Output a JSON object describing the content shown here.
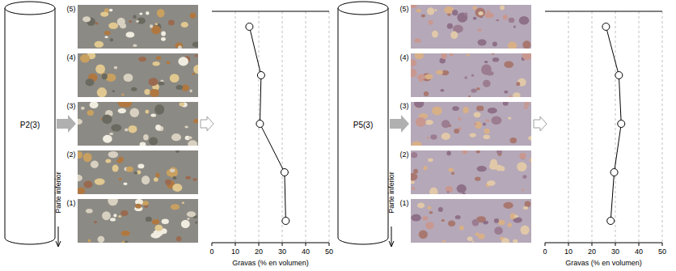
{
  "chart_data": [
    {
      "type": "line",
      "title": "P2(3)",
      "categories": [
        "(1)",
        "(2)",
        "(3)",
        "(4)",
        "(5)"
      ],
      "values": [
        31.5,
        31,
        20.5,
        21,
        16
      ],
      "color": "#000000",
      "marker": "circle",
      "orientation": "horizontal",
      "xlabel": "Gravas (% en volumen)",
      "xlim": [
        0,
        50
      ],
      "xticks": [
        0,
        10,
        20,
        30,
        40,
        50
      ],
      "grid": true,
      "tick_labels": "x",
      "annotations": [
        "Parte inferior"
      ]
    },
    {
      "type": "line",
      "title": "P5(3)",
      "categories": [
        "(1)",
        "(2)",
        "(3)",
        "(4)",
        "(5)"
      ],
      "values": [
        28,
        29.5,
        32.5,
        31.5,
        26
      ],
      "color": "#000000",
      "marker": "circle",
      "orientation": "horizontal",
      "xlabel": "Gravas (% en volumen)",
      "xlim": [
        0,
        50
      ],
      "xticks": [
        0,
        10,
        20,
        30,
        40,
        50
      ],
      "grid": true,
      "tick_labels": "x",
      "annotations": [
        "Parte inferior"
      ]
    }
  ]
}
